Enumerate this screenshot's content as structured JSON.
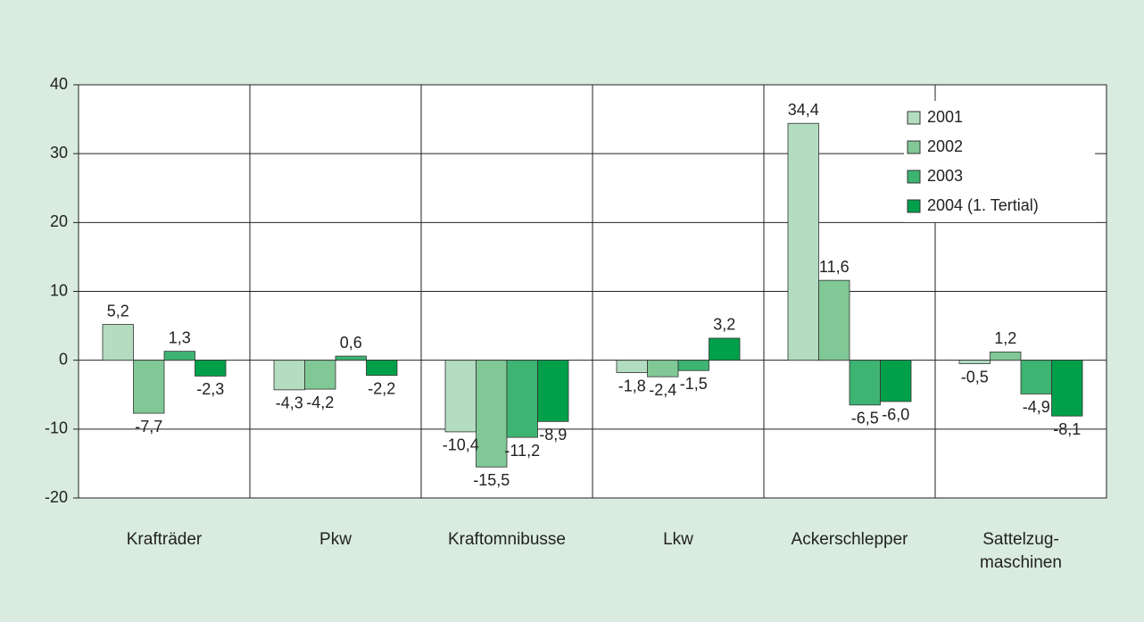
{
  "chart_data": {
    "type": "bar",
    "categories": [
      "Krafträder",
      "Pkw",
      "Kraftomnibusse",
      "Lkw",
      "Ackerschlepper",
      "Sattelzug-\nmaschinen"
    ],
    "series": [
      {
        "name": "2001",
        "color": "#b3dcc0",
        "values": [
          5.2,
          -4.3,
          -10.4,
          -1.8,
          34.4,
          -0.5
        ],
        "value_labels": [
          "5,2",
          "-4,3",
          "-10,4",
          "-1,8",
          "34,4",
          "-0,5"
        ]
      },
      {
        "name": "2002",
        "color": "#80c895",
        "values": [
          -7.7,
          -4.2,
          -15.5,
          -2.4,
          11.6,
          1.2
        ],
        "value_labels": [
          "-7,7",
          "-4,2",
          "-15,5",
          "-2,4",
          "11,6",
          "1,2"
        ]
      },
      {
        "name": "2003",
        "color": "#3db472",
        "values": [
          1.3,
          0.6,
          -11.2,
          -1.5,
          -6.5,
          -4.9
        ],
        "value_labels": [
          "1,3",
          "0,6",
          "-11,2",
          "-1,5",
          "-6,5",
          "-4,9"
        ]
      },
      {
        "name": "2004 (1. Tertial)",
        "color": "#00a04a",
        "values": [
          -2.3,
          -2.2,
          -8.9,
          3.2,
          -6.0,
          -8.1
        ],
        "value_labels": [
          "-2,3",
          "-2,2",
          "-8,9",
          "3,2",
          "-6,0",
          "-8,1"
        ]
      }
    ],
    "ylim": [
      -20,
      40
    ],
    "yticks": [
      -20,
      -10,
      0,
      10,
      20,
      30,
      40
    ],
    "grid": true,
    "legend": "upper right"
  }
}
